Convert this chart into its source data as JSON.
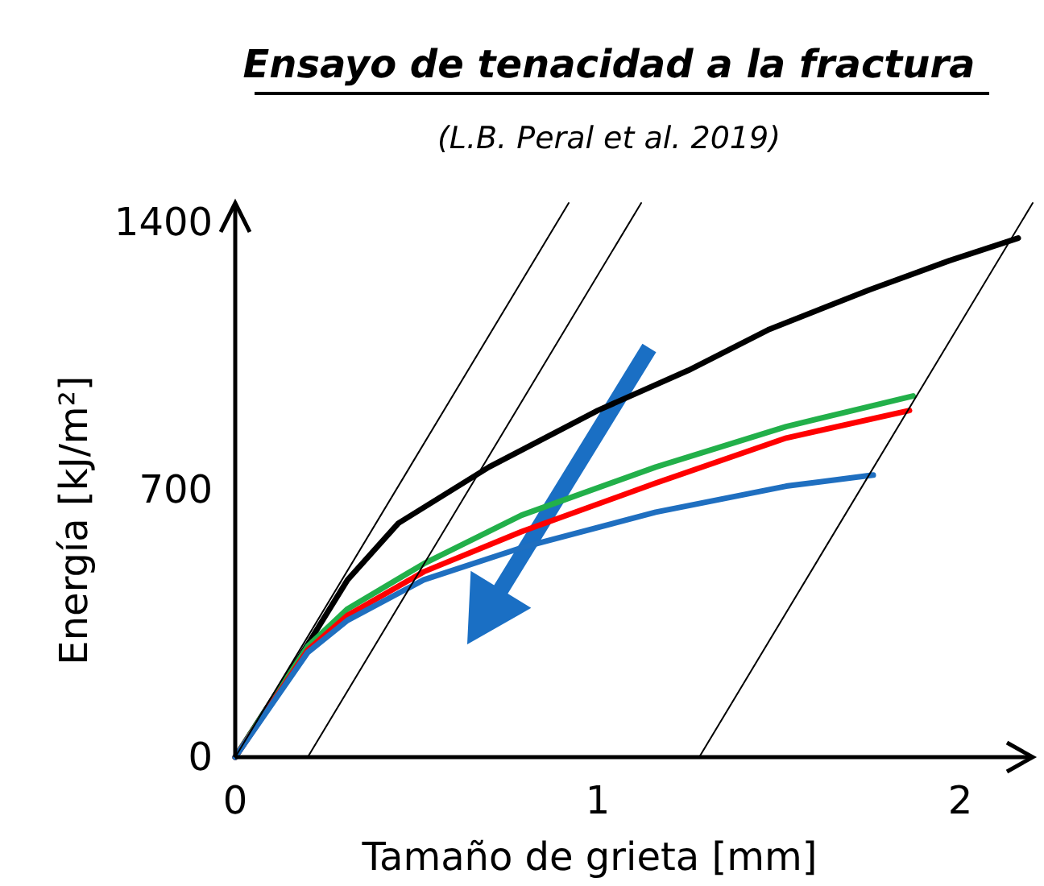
{
  "chart_data": {
    "type": "line",
    "title": "Ensayo de tenacidad a la fractura",
    "subtitle": "(L.B. Peral et al. 2019)",
    "xlabel": "Tamaño de grieta [mm]",
    "ylabel": "Energía [kJ/m²]",
    "xlim": [
      0,
      2.2
    ],
    "ylim": [
      0,
      1450
    ],
    "xticks": [
      0,
      1,
      2
    ],
    "yticks": [
      0,
      700,
      1400
    ],
    "grid": false,
    "marker": "none",
    "line_style": "solid",
    "series": [
      {
        "color": "#000000",
        "x": [
          0,
          0.2,
          0.31,
          0.45,
          0.7,
          1.0,
          1.25,
          1.47,
          1.75,
          1.97,
          2.16
        ],
        "values": [
          0,
          295,
          464,
          612,
          759,
          907,
          1012,
          1118,
          1223,
          1299,
          1358
        ]
      },
      {
        "color": "#22b04a",
        "x": [
          0,
          0.2,
          0.31,
          0.52,
          0.79,
          1.16,
          1.52,
          1.87
        ],
        "values": [
          0,
          290,
          388,
          506,
          633,
          759,
          865,
          945
        ]
      },
      {
        "color": "#ff0000",
        "x": [
          0,
          0.2,
          0.31,
          0.52,
          0.79,
          1.16,
          1.52,
          1.86
        ],
        "values": [
          0,
          280,
          371,
          485,
          590,
          717,
          835,
          907
        ]
      },
      {
        "color": "#1f6fc0",
        "x": [
          0,
          0.2,
          0.31,
          0.52,
          0.79,
          1.16,
          1.52,
          1.76
        ],
        "values": [
          0,
          274,
          358,
          464,
          548,
          641,
          709,
          738
        ]
      },
      {
        "color": "#000000",
        "x": [
          0,
          0.92
        ],
        "values": [
          0,
          1450
        ]
      },
      {
        "color": "#000000",
        "x": [
          0.2,
          1.12
        ],
        "values": [
          0,
          1450
        ]
      },
      {
        "color": "#000000",
        "x": [
          1.28,
          2.2
        ],
        "values": [
          0,
          1450
        ]
      }
    ]
  }
}
